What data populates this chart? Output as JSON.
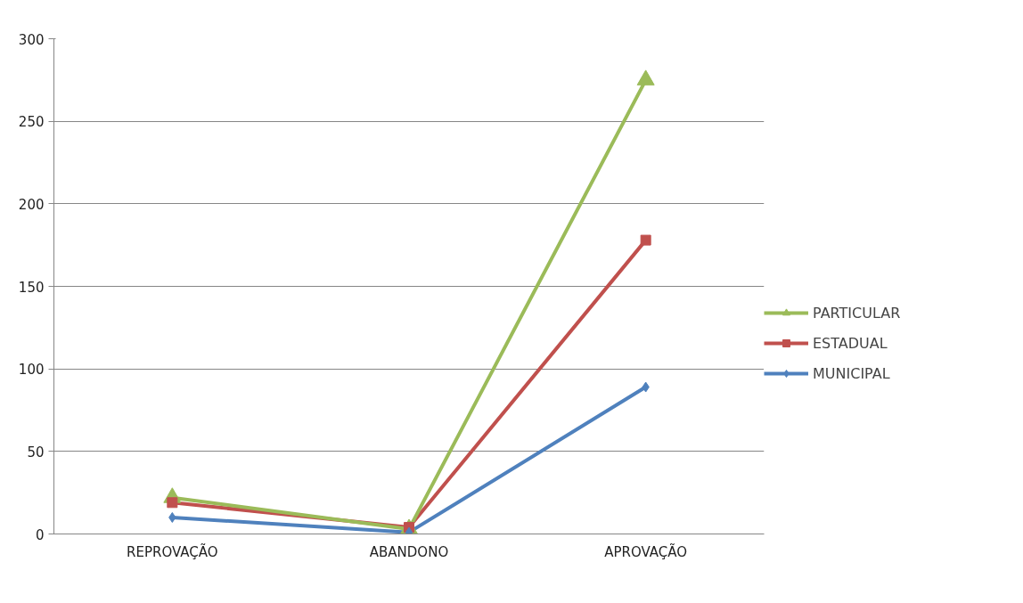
{
  "chart_data": {
    "type": "line",
    "categories": [
      "REPROVAÇÃO",
      "ABANDONO",
      "APROVAÇÃO"
    ],
    "series": [
      {
        "name": "PARTICULAR",
        "color": "#9bbb59",
        "marker": "triangle",
        "values": [
          22,
          3,
          275
        ]
      },
      {
        "name": "ESTADUAL",
        "color": "#c0504d",
        "marker": "square",
        "values": [
          19,
          4,
          178
        ]
      },
      {
        "name": "MUNICIPAL",
        "color": "#4f81bd",
        "marker": "diamond",
        "values": [
          10,
          1,
          89
        ]
      }
    ],
    "ylim": [
      0,
      300
    ],
    "yticks": [
      0,
      50,
      100,
      150,
      200,
      250,
      300
    ],
    "grid": "y",
    "legend": "right",
    "line_style": "solid"
  }
}
